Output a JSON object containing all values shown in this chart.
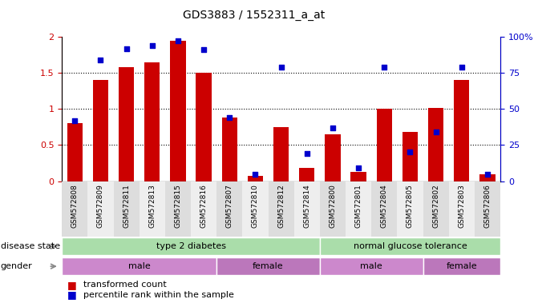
{
  "title": "GDS3883 / 1552311_a_at",
  "samples": [
    "GSM572808",
    "GSM572809",
    "GSM572811",
    "GSM572813",
    "GSM572815",
    "GSM572816",
    "GSM572807",
    "GSM572810",
    "GSM572812",
    "GSM572814",
    "GSM572800",
    "GSM572801",
    "GSM572804",
    "GSM572805",
    "GSM572802",
    "GSM572803",
    "GSM572806"
  ],
  "transformed_count": [
    0.8,
    1.4,
    1.58,
    1.65,
    1.95,
    1.5,
    0.88,
    0.07,
    0.75,
    0.18,
    0.65,
    0.13,
    1.0,
    0.68,
    1.02,
    1.4,
    0.1
  ],
  "percentile_rank": [
    42,
    84,
    92,
    94,
    97,
    91,
    44,
    5,
    79,
    19,
    37,
    9,
    79,
    20,
    34,
    79,
    5
  ],
  "bar_color": "#cc0000",
  "dot_color": "#0000cc",
  "left_yaxis_color": "#cc0000",
  "right_yaxis_color": "#0000cc",
  "ylim_left": [
    0,
    2.0
  ],
  "ylim_right": [
    0,
    100
  ],
  "left_yticks": [
    0,
    0.5,
    1.0,
    1.5,
    2.0
  ],
  "right_yticks": [
    0,
    25,
    50,
    75,
    100
  ],
  "right_yticklabels": [
    "0",
    "25",
    "50",
    "75",
    "100%"
  ],
  "disease_state_groups": [
    {
      "label": "type 2 diabetes",
      "start": 0,
      "end": 9
    },
    {
      "label": "normal glucose tolerance",
      "start": 10,
      "end": 16
    }
  ],
  "gender_groups": [
    {
      "label": "male",
      "start": 0,
      "end": 5
    },
    {
      "label": "female",
      "start": 6,
      "end": 9
    },
    {
      "label": "male",
      "start": 10,
      "end": 13
    },
    {
      "label": "female",
      "start": 14,
      "end": 16
    }
  ],
  "disease_color": "#aaddaa",
  "gender_color_1": "#cc88cc",
  "gender_color_2": "#bb77bb",
  "xtick_bg_even": "#dddddd",
  "xtick_bg_odd": "#eeeeee",
  "legend_red": "transformed count",
  "legend_blue": "percentile rank within the sample",
  "label_disease": "disease state",
  "label_gender": "gender"
}
